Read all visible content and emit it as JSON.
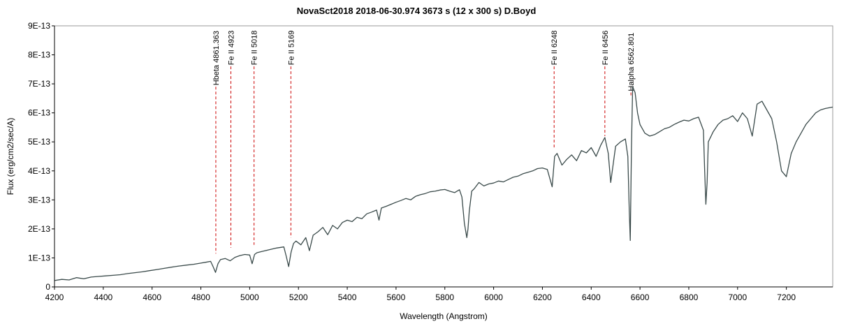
{
  "chart_data": {
    "type": "line",
    "title": "NovaSct2018   2018-06-30.974   3673 s (12 x 300 s)   D.Boyd",
    "xlabel": "Wavelength (Angstrom)",
    "ylabel": "Flux (erg/cm2/sec/A)",
    "xlim": [
      4200,
      7390
    ],
    "ylim": [
      0,
      9e-13
    ],
    "x_ticks": [
      4200,
      4400,
      4600,
      4800,
      5000,
      5200,
      5400,
      5600,
      5800,
      6000,
      6200,
      6400,
      6600,
      6800,
      7000,
      7200
    ],
    "x_tick_labels": [
      "4200",
      "4400",
      "4600",
      "4800",
      "5000",
      "5200",
      "5400",
      "5600",
      "5800",
      "6000",
      "6200",
      "6400",
      "6600",
      "6800",
      "7000",
      "7200"
    ],
    "y_ticks": [
      0,
      1e-13,
      2e-13,
      3e-13,
      4e-13,
      5e-13,
      6e-13,
      7e-13,
      8e-13,
      9e-13
    ],
    "y_tick_labels": [
      "0",
      "1E-13",
      "2E-13",
      "3E-13",
      "4E-13",
      "5E-13",
      "6E-13",
      "7E-13",
      "8E-13",
      "9E-13"
    ],
    "grid": false,
    "line_color": "#3a4a4a",
    "marker_color": "#cc0000",
    "line_markers": [
      {
        "label": "Hbeta 4861.363",
        "x": 4861.363,
        "y_top": 6.9e-13,
        "y_bottom": 1.15e-13
      },
      {
        "label": "Fe II 4923",
        "x": 4923,
        "y_top": 7.6e-13,
        "y_bottom": 1.35e-13
      },
      {
        "label": "Fe II 5018",
        "x": 5018,
        "y_top": 7.6e-13,
        "y_bottom": 1.45e-13
      },
      {
        "label": "Fe II 5169",
        "x": 5169,
        "y_top": 7.6e-13,
        "y_bottom": 1.7e-13
      },
      {
        "label": "Fe II 6248",
        "x": 6248,
        "y_top": 7.6e-13,
        "y_bottom": 4.8e-13
      },
      {
        "label": "Fe II 6456",
        "x": 6456,
        "y_top": 7.6e-13,
        "y_bottom": 5.2e-13
      },
      {
        "label": "Halpha 6562.801",
        "x": 6562.801,
        "y_top": 6.7e-13,
        "y_bottom": 6.6e-13
      }
    ],
    "series": [
      {
        "x": [
          4200,
          4230,
          4260,
          4290,
          4320,
          4350,
          4380,
          4410,
          4440,
          4470,
          4500,
          4530,
          4560,
          4590,
          4620,
          4650,
          4680,
          4710,
          4740,
          4770,
          4800,
          4820,
          4840,
          4850,
          4860,
          4870,
          4880,
          4900,
          4920,
          4940,
          4960,
          4980,
          5000,
          5010,
          5020,
          5030,
          5050,
          5080,
          5110,
          5140,
          5150,
          5160,
          5170,
          5180,
          5190,
          5210,
          5230,
          5245,
          5260,
          5280,
          5300,
          5320,
          5340,
          5360,
          5380,
          5400,
          5420,
          5440,
          5460,
          5480,
          5500,
          5520,
          5530,
          5540,
          5560,
          5580,
          5600,
          5620,
          5640,
          5660,
          5680,
          5700,
          5720,
          5740,
          5760,
          5780,
          5800,
          5820,
          5840,
          5860,
          5870,
          5880,
          5890,
          5895,
          5900,
          5910,
          5920,
          5940,
          5960,
          5980,
          6000,
          6020,
          6040,
          6060,
          6080,
          6100,
          6120,
          6140,
          6160,
          6180,
          6200,
          6220,
          6240,
          6250,
          6260,
          6280,
          6300,
          6320,
          6340,
          6360,
          6380,
          6400,
          6420,
          6440,
          6456,
          6470,
          6480,
          6500,
          6520,
          6540,
          6550,
          6556,
          6560,
          6565,
          6570,
          6580,
          6590,
          6600,
          6620,
          6640,
          6660,
          6680,
          6700,
          6720,
          6740,
          6760,
          6780,
          6800,
          6820,
          6840,
          6860,
          6865,
          6870,
          6875,
          6880,
          6900,
          6920,
          6940,
          6960,
          6980,
          7000,
          7020,
          7040,
          7060,
          7080,
          7100,
          7120,
          7140,
          7160,
          7180,
          7200,
          7220,
          7240,
          7260,
          7280,
          7300,
          7320,
          7340,
          7360,
          7390
        ],
        "y": [
          2.2e-14,
          2.6e-14,
          2.4e-14,
          3.2e-14,
          2.8e-14,
          3.4e-14,
          3.6e-14,
          3.8e-14,
          4e-14,
          4.2e-14,
          4.6e-14,
          4.9e-14,
          5.2e-14,
          5.6e-14,
          6e-14,
          6.4e-14,
          6.8e-14,
          7.2e-14,
          7.5e-14,
          7.8e-14,
          8.2e-14,
          8.5e-14,
          8.8e-14,
          7e-14,
          5e-14,
          8e-14,
          9.4e-14,
          9.8e-14,
          9e-14,
          1.02e-13,
          1.08e-13,
          1.12e-13,
          1.1e-13,
          8e-14,
          1.12e-13,
          1.18e-13,
          1.22e-13,
          1.28e-13,
          1.34e-13,
          1.38e-13,
          1.05e-13,
          7e-14,
          1.2e-13,
          1.5e-13,
          1.58e-13,
          1.45e-13,
          1.7e-13,
          1.25e-13,
          1.78e-13,
          1.9e-13,
          2.05e-13,
          1.8e-13,
          2.12e-13,
          2e-13,
          2.22e-13,
          2.3e-13,
          2.25e-13,
          2.4e-13,
          2.35e-13,
          2.52e-13,
          2.58e-13,
          2.65e-13,
          2.3e-13,
          2.72e-13,
          2.78e-13,
          2.85e-13,
          2.92e-13,
          2.98e-13,
          3.05e-13,
          3e-13,
          3.12e-13,
          3.18e-13,
          3.22e-13,
          3.28e-13,
          3.3e-13,
          3.34e-13,
          3.36e-13,
          3.3e-13,
          3.25e-13,
          3.35e-13,
          3.1e-13,
          2.2e-13,
          1.7e-13,
          2e-13,
          2.6e-13,
          3.3e-13,
          3.38e-13,
          3.6e-13,
          3.48e-13,
          3.55e-13,
          3.58e-13,
          3.65e-13,
          3.62e-13,
          3.7e-13,
          3.78e-13,
          3.82e-13,
          3.9e-13,
          3.95e-13,
          4e-13,
          4.08e-13,
          4.1e-13,
          4.05e-13,
          3.45e-13,
          4.5e-13,
          4.6e-13,
          4.2e-13,
          4.4e-13,
          4.55e-13,
          4.35e-13,
          4.7e-13,
          4.62e-13,
          4.8e-13,
          4.5e-13,
          4.9e-13,
          5.15e-13,
          4.6e-13,
          3.6e-13,
          4.85e-13,
          5e-13,
          5.1e-13,
          4.5e-13,
          2.6e-13,
          1.6e-13,
          4.8e-13,
          6.9e-13,
          6.7e-13,
          6e-13,
          5.6e-13,
          5.3e-13,
          5.2e-13,
          5.25e-13,
          5.35e-13,
          5.45e-13,
          5.5e-13,
          5.6e-13,
          5.68e-13,
          5.75e-13,
          5.72e-13,
          5.8e-13,
          5.85e-13,
          5.4e-13,
          4e-13,
          2.85e-13,
          3.6e-13,
          5e-13,
          5.35e-13,
          5.6e-13,
          5.75e-13,
          5.8e-13,
          5.9e-13,
          5.7e-13,
          6e-13,
          5.8e-13,
          5.2e-13,
          6.3e-13,
          6.4e-13,
          6.1e-13,
          5.8e-13,
          5e-13,
          4e-13,
          3.8e-13,
          4.6e-13,
          5e-13,
          5.3e-13,
          5.6e-13,
          5.8e-13,
          6e-13,
          6.1e-13,
          6.15e-13,
          6.2e-13
        ]
      }
    ]
  }
}
